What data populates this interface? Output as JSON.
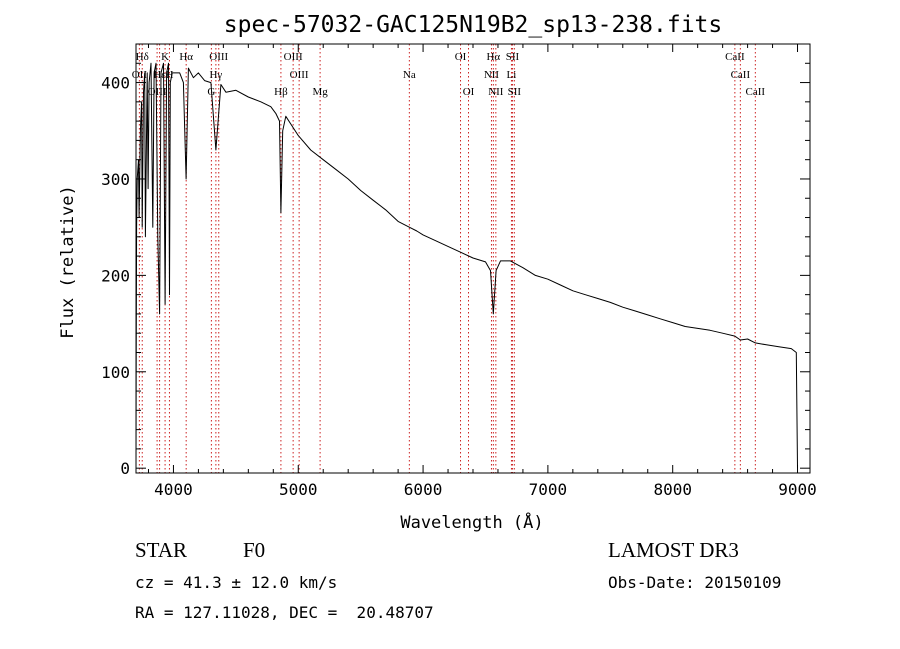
{
  "chart_data": {
    "type": "line",
    "title": "spec-57032-GAC125N19B2_sp13-238.fits",
    "xlabel": "Wavelength (Å)",
    "ylabel": "Flux (relative)",
    "xlim": [
      3700,
      9100
    ],
    "ylim": [
      -5,
      440
    ],
    "xticks": [
      4000,
      5000,
      6000,
      7000,
      8000,
      9000
    ],
    "xtick_labels": [
      "4000",
      "5000",
      "6000",
      "7000",
      "8000",
      "9000"
    ],
    "yticks": [
      0,
      100,
      200,
      300,
      400
    ],
    "ytick_labels": [
      "0",
      "100",
      "200",
      "300",
      "400"
    ],
    "series": [
      {
        "name": "spectrum",
        "x": [
          3700,
          3702,
          3705,
          3710,
          3720,
          3725,
          3735,
          3745,
          3750,
          3760,
          3770,
          3775,
          3790,
          3797,
          3805,
          3820,
          3835,
          3845,
          3860,
          3875,
          3889,
          3900,
          3920,
          3933,
          3945,
          3960,
          3968,
          3975,
          3990,
          4020,
          4050,
          4080,
          4101,
          4120,
          4160,
          4200,
          4250,
          4300,
          4340,
          4380,
          4420,
          4500,
          4600,
          4700,
          4780,
          4820,
          4850,
          4861,
          4875,
          4900,
          4950,
          5000,
          5100,
          5200,
          5300,
          5400,
          5500,
          5600,
          5700,
          5800,
          5890,
          5950,
          6000,
          6100,
          6200,
          6300,
          6400,
          6500,
          6540,
          6563,
          6585,
          6620,
          6700,
          6800,
          6900,
          7000,
          7100,
          7200,
          7300,
          7400,
          7500,
          7600,
          7700,
          7800,
          7900,
          8000,
          8100,
          8200,
          8300,
          8400,
          8498,
          8542,
          8600,
          8662,
          8750,
          8850,
          8950,
          8990,
          9000
        ],
        "values": [
          0,
          110,
          250,
          300,
          320,
          260,
          350,
          380,
          250,
          390,
          410,
          240,
          410,
          290,
          400,
          420,
          250,
          410,
          420,
          240,
          160,
          410,
          420,
          170,
          410,
          420,
          180,
          400,
          410,
          410,
          410,
          400,
          300,
          415,
          405,
          410,
          402,
          400,
          330,
          398,
          390,
          392,
          385,
          380,
          375,
          368,
          360,
          265,
          350,
          365,
          355,
          345,
          330,
          320,
          310,
          300,
          288,
          278,
          268,
          256,
          250,
          246,
          242,
          236,
          230,
          224,
          218,
          214,
          205,
          160,
          205,
          215,
          215,
          208,
          200,
          196,
          190,
          184,
          180,
          176,
          172,
          167,
          163,
          159,
          155,
          151,
          147,
          145,
          143,
          140,
          137,
          133,
          134,
          130,
          128,
          126,
          124,
          120,
          0
        ]
      }
    ],
    "lines": [
      {
        "label": "Hδ",
        "wavelength": 3750,
        "row": 1
      },
      {
        "label": "K",
        "wavelength": 3933,
        "row": 1
      },
      {
        "label": "Hα",
        "wavelength": 4102,
        "row": 1
      },
      {
        "label": "OIII",
        "wavelength": 4363,
        "row": 1
      },
      {
        "label": "OIII",
        "wavelength": 4959,
        "row": 1
      },
      {
        "label": "OI",
        "wavelength": 6300,
        "row": 1
      },
      {
        "label": "Hα",
        "wavelength": 6563,
        "row": 1
      },
      {
        "label": "SII",
        "wavelength": 6716,
        "row": 1
      },
      {
        "label": "CaII",
        "wavelength": 8498,
        "row": 1
      },
      {
        "label": "OII",
        "wavelength": 3727,
        "row": 2
      },
      {
        "label": "Hε",
        "wavelength": 3889,
        "row": 2
      },
      {
        "label": "H",
        "wavelength": 3968,
        "row": 2
      },
      {
        "label": "Hγ",
        "wavelength": 4340,
        "row": 2
      },
      {
        "label": "OIII",
        "wavelength": 5007,
        "row": 2
      },
      {
        "label": "Na",
        "wavelength": 5890,
        "row": 2
      },
      {
        "label": "NII",
        "wavelength": 6548,
        "row": 2
      },
      {
        "label": "Li",
        "wavelength": 6708,
        "row": 2
      },
      {
        "label": "CaII",
        "wavelength": 8542,
        "row": 2
      },
      {
        "label": "OIII",
        "wavelength": 3869,
        "row": 3
      },
      {
        "label": "G",
        "wavelength": 4304,
        "row": 3
      },
      {
        "label": "Hβ",
        "wavelength": 4861,
        "row": 3
      },
      {
        "label": "Mg",
        "wavelength": 5175,
        "row": 3
      },
      {
        "label": "OI",
        "wavelength": 6364,
        "row": 3
      },
      {
        "label": "NII",
        "wavelength": 6583,
        "row": 3
      },
      {
        "label": "SII",
        "wavelength": 6731,
        "row": 3
      },
      {
        "label": "CaII",
        "wavelength": 8662,
        "row": 3
      }
    ]
  },
  "footer": {
    "object_class": "STAR",
    "subclass": "F0",
    "survey": "LAMOST DR3",
    "redshift": "cz = 41.3 ± 12.0 km/s",
    "obs_date": "Obs-Date: 20150109",
    "coords": "RA = 127.11028, DEC =  20.48707"
  },
  "colors": {
    "spectrum": "#000000",
    "marker_lines": "#cc2222",
    "axes": "#000000"
  }
}
